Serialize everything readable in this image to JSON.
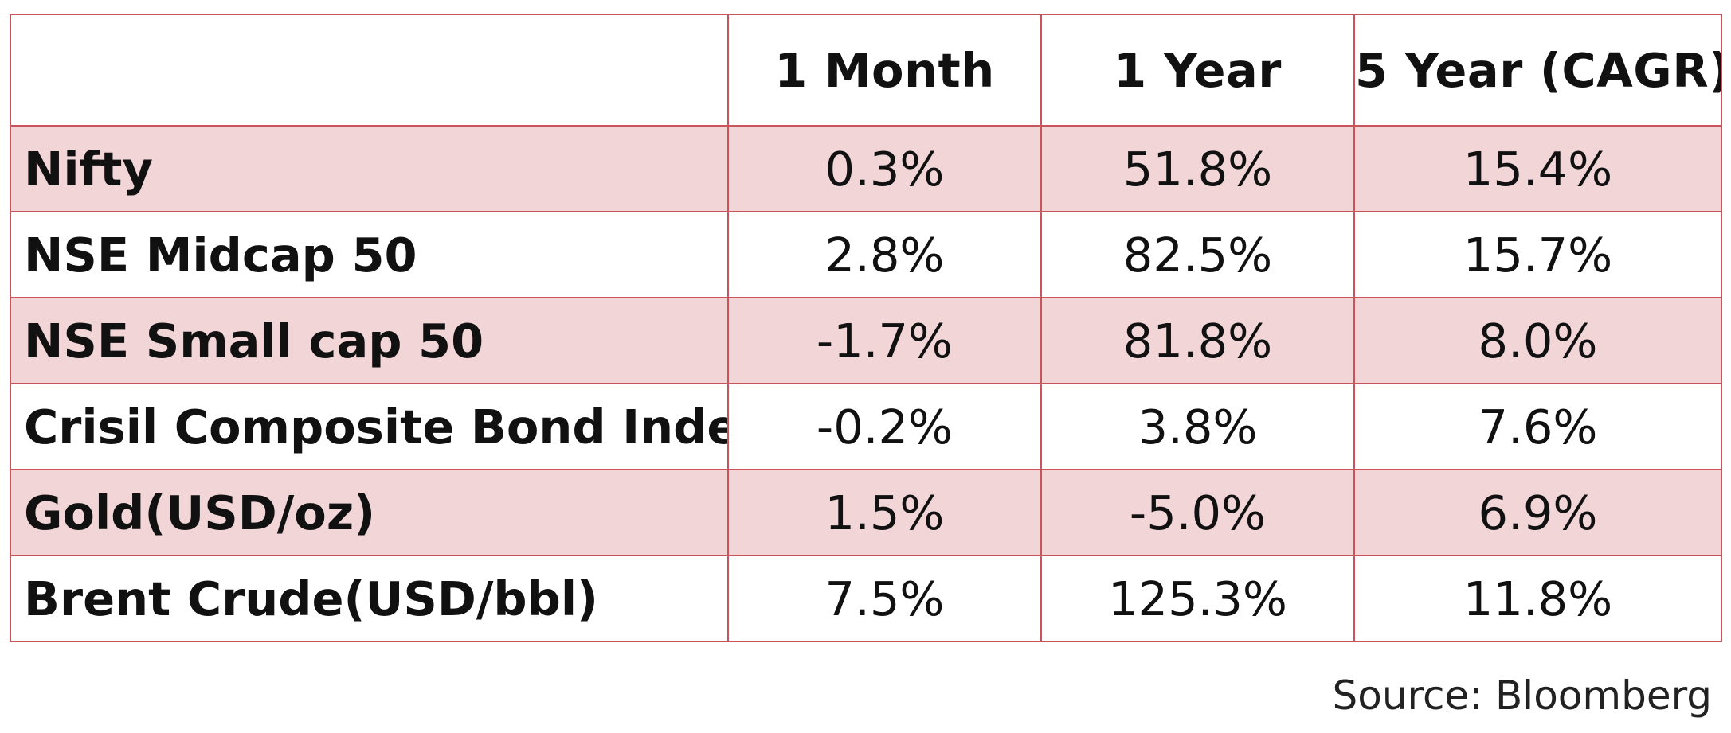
{
  "table": {
    "columns": [
      "",
      "1 Month",
      "1 Year",
      "5 Year (CAGR)"
    ],
    "rows": [
      {
        "label": "Nifty",
        "values": [
          "0.3%",
          "51.8%",
          "15.4%"
        ]
      },
      {
        "label": "NSE Midcap 50",
        "values": [
          "2.8%",
          "82.5%",
          "15.7%"
        ]
      },
      {
        "label": "NSE Small cap 50",
        "values": [
          "-1.7%",
          "81.8%",
          "8.0%"
        ]
      },
      {
        "label": "Crisil Composite Bond Index",
        "values": [
          "-0.2%",
          "3.8%",
          "7.6%"
        ]
      },
      {
        "label": "Gold(USD/oz)",
        "values": [
          "1.5%",
          "-5.0%",
          "6.9%"
        ]
      },
      {
        "label": "Brent Crude(USD/bbl)",
        "values": [
          "7.5%",
          "125.3%",
          "11.8%"
        ]
      }
    ]
  },
  "source": "Source: Bloomberg",
  "colors": {
    "border": "#c9545a",
    "shaded_row": "#f1d5d7"
  }
}
